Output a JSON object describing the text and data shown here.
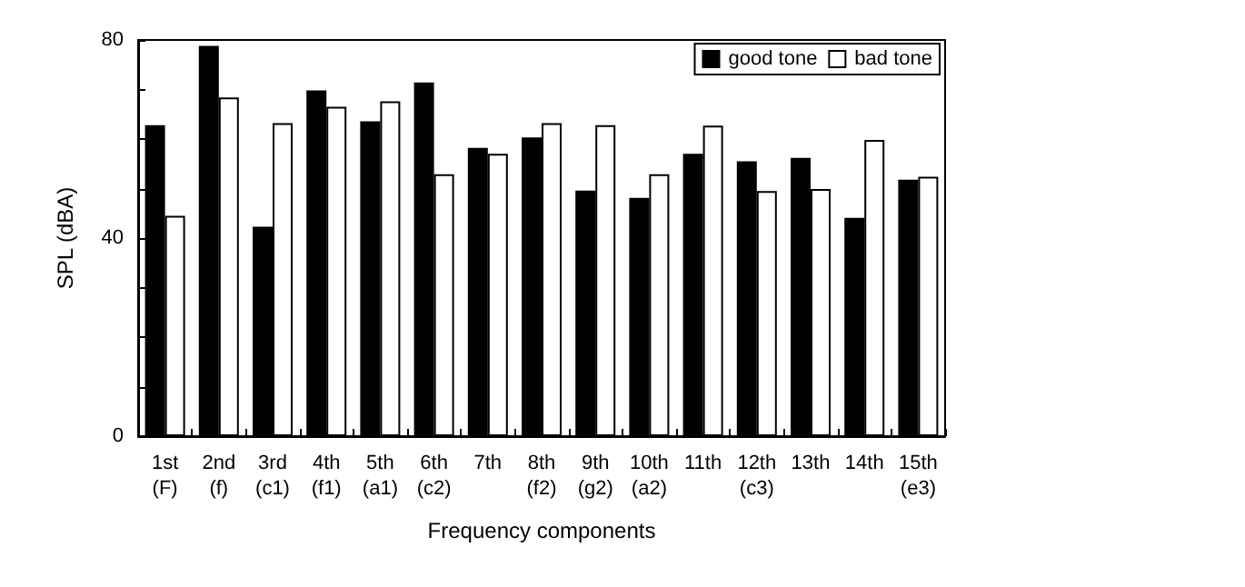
{
  "chart_data": {
    "type": "bar",
    "xlabel": "Frequency components",
    "ylabel": "SPL (dBA)",
    "categories": [
      "1st\n(F)",
      "2nd\n(f)",
      "3rd\n(c1)",
      "4th\n(f1)",
      "5th\n(a1)",
      "6th\n(c2)",
      "7th",
      "8th\n(f2)",
      "9th\n(g2)",
      "10th\n(a2)",
      "11th",
      "12th\n(c3)",
      "13th",
      "14th",
      "15th\n(e3)"
    ],
    "series": [
      {
        "name": "good tone",
        "color": "#000000",
        "values": [
          62.8,
          78.8,
          42.3,
          69.8,
          63.6,
          71.4,
          58.2,
          60.3,
          49.6,
          48.1,
          57.0,
          55.5,
          56.2,
          44.1,
          51.8
        ]
      },
      {
        "name": "bad tone",
        "color": "#ffffff",
        "values": [
          44.5,
          68.4,
          63.2,
          66.5,
          67.6,
          52.9,
          57.0,
          63.2,
          62.8,
          52.9,
          62.7,
          49.5,
          49.9,
          59.8,
          52.4
        ]
      }
    ],
    "ylim": [
      0,
      80
    ],
    "yticks": [
      0,
      {
        "value": 10,
        "label": null
      },
      {
        "value": 20,
        "label": null
      },
      {
        "value": 30,
        "label": null
      },
      40,
      {
        "value": 50,
        "label": null
      },
      {
        "value": 60,
        "label": null
      },
      {
        "value": 70,
        "label": null
      },
      80
    ],
    "grid": false,
    "legend": "top right"
  }
}
